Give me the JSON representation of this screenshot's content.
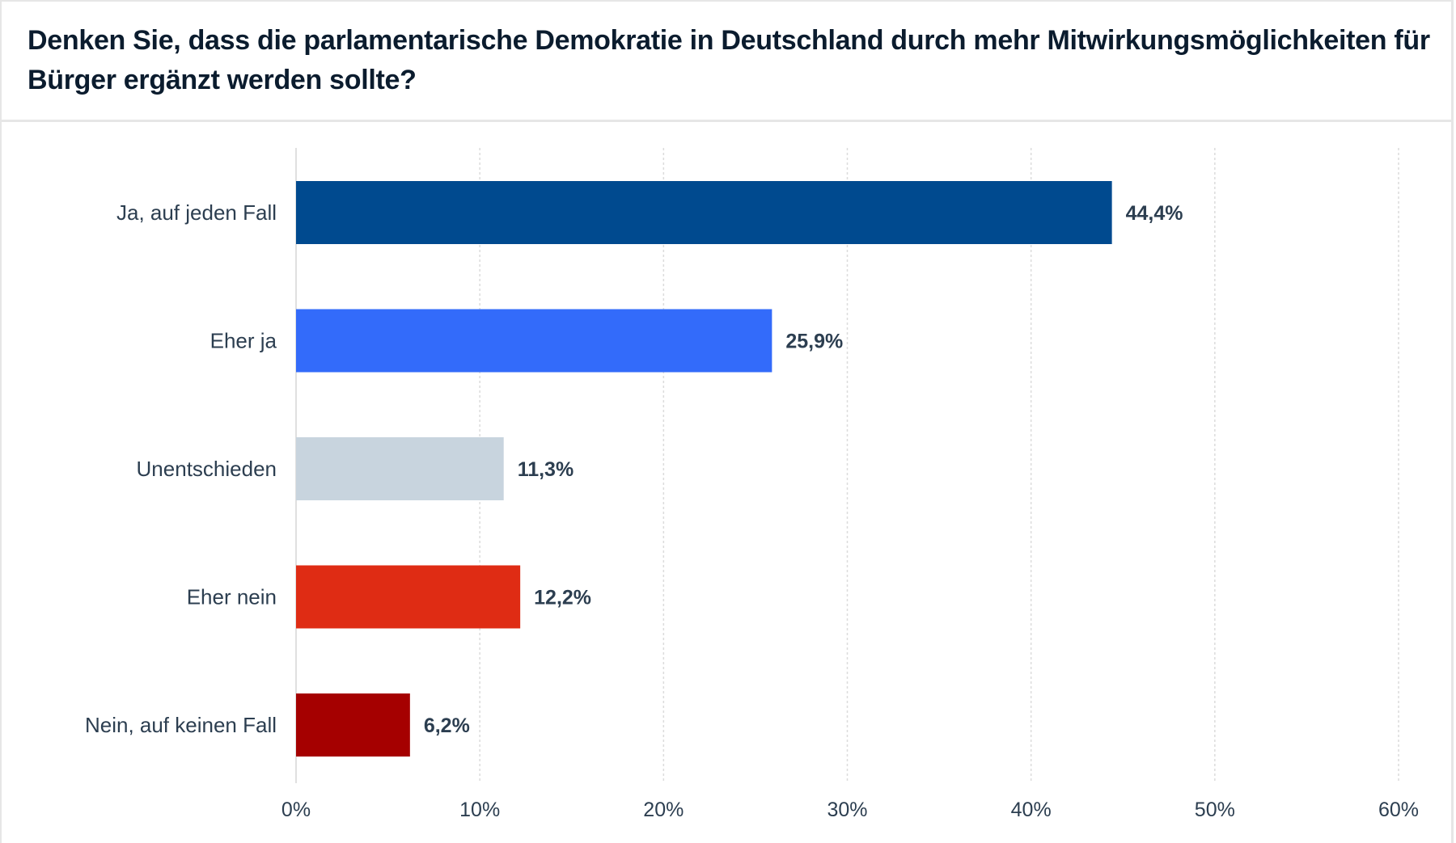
{
  "header": {
    "title": "Denken Sie, dass die parlamentarische Demokratie in Deutschland durch mehr Mitwirkungsmöglichkeiten für Bürger ergänzt werden sollte?"
  },
  "chart_data": {
    "type": "bar",
    "orientation": "horizontal",
    "title": "Denken Sie, dass die parlamentarische Demokratie in Deutschland durch mehr Mitwirkungsmöglichkeiten für Bürger ergänzt werden sollte?",
    "categories": [
      "Ja, auf jeden Fall",
      "Eher ja",
      "Unentschieden",
      "Eher nein",
      "Nein, auf keinen Fall"
    ],
    "values": [
      44.4,
      25.9,
      11.3,
      12.2,
      6.2
    ],
    "value_labels": [
      "44,4%",
      "25,9%",
      "11,3%",
      "12,2%",
      "6,2%"
    ],
    "colors": [
      "#004a8f",
      "#336bfa",
      "#c8d4de",
      "#df2c14",
      "#a50000"
    ],
    "xlabel": "",
    "ylabel": "",
    "xlim": [
      0,
      60
    ],
    "ticks": [
      0,
      10,
      20,
      30,
      40,
      50,
      60
    ],
    "tick_labels": [
      "0%",
      "10%",
      "20%",
      "30%",
      "40%",
      "50%",
      "60%"
    ],
    "grid": true,
    "legend": "none"
  }
}
